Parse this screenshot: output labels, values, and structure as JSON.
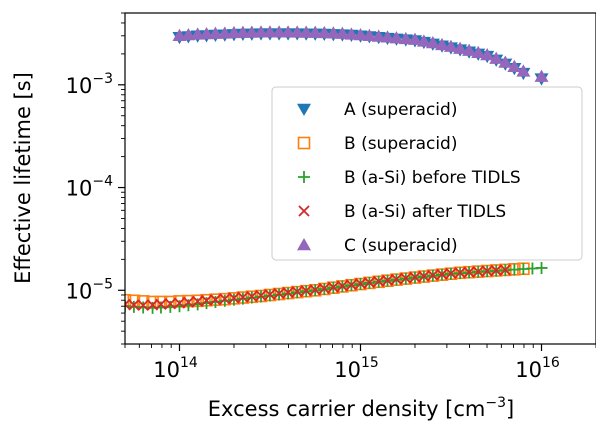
{
  "chart_data": {
    "type": "scatter",
    "xlabel": "Excess carrier density [cm",
    "xlabel_sup": "−3",
    "xlabel_end": "]",
    "ylabel": "Effective lifetime [s]",
    "xscale": "log",
    "yscale": "log",
    "xlim": [
      50000000000000.0,
      2e+16
    ],
    "ylim": [
      3e-06,
      0.005
    ],
    "grid": false,
    "legend_position": "center-right",
    "x_ticks": [
      {
        "base": "10",
        "exp": "14"
      },
      {
        "base": "10",
        "exp": "15"
      },
      {
        "base": "10",
        "exp": "16"
      }
    ],
    "y_ticks": [
      {
        "base": "10",
        "exp": "−5"
      },
      {
        "base": "10",
        "exp": "−4"
      },
      {
        "base": "10",
        "exp": "−3"
      }
    ],
    "series": [
      {
        "name": "A (superacid)",
        "marker": "triangle-down",
        "color": "#1f77b4",
        "x": [
          100000000000000.0,
          112000000000000.0,
          126000000000000.0,
          141000000000000.0,
          158000000000000.0,
          178000000000000.0,
          200000000000000.0,
          224000000000000.0,
          251000000000000.0,
          282000000000000.0,
          316000000000000.0,
          355000000000000.0,
          398000000000000.0,
          447000000000000.0,
          501000000000000.0,
          562000000000000.0,
          631000000000000.0,
          708000000000000.0,
          794000000000000.0,
          891000000000000.0,
          1000000000000000.0,
          1120000000000000.0,
          1260000000000000.0,
          1410000000000000.0,
          1580000000000000.0,
          1780000000000000.0,
          2000000000000000.0,
          2240000000000000.0,
          2510000000000000.0,
          2820000000000000.0,
          3160000000000000.0,
          3550000000000000.0,
          3980000000000000.0,
          4470000000000000.0,
          5010000000000000.0,
          5620000000000000.0,
          6310000000000000.0,
          7080000000000000.0,
          7940000000000000.0,
          1e+16
        ],
        "y": [
          0.0029,
          0.00295,
          0.003,
          0.00302,
          0.00305,
          0.00307,
          0.0031,
          0.00312,
          0.00313,
          0.00315,
          0.00315,
          0.00315,
          0.00315,
          0.00315,
          0.00314,
          0.00313,
          0.00312,
          0.0031,
          0.00308,
          0.00305,
          0.003,
          0.00295,
          0.0029,
          0.00285,
          0.0028,
          0.00275,
          0.0027,
          0.0026,
          0.0025,
          0.0024,
          0.0023,
          0.0022,
          0.0021,
          0.002,
          0.0019,
          0.00175,
          0.0016,
          0.00145,
          0.0013,
          0.00115
        ]
      },
      {
        "name": "B (superacid)",
        "marker": "square-open",
        "color": "#ff7f0e",
        "x": [
          50000000000000.0,
          56000000000000.0,
          63000000000000.0,
          71000000000000.0,
          79000000000000.0,
          89000000000000.0,
          100000000000000.0,
          112000000000000.0,
          126000000000000.0,
          141000000000000.0,
          158000000000000.0,
          178000000000000.0,
          200000000000000.0,
          224000000000000.0,
          251000000000000.0,
          282000000000000.0,
          316000000000000.0,
          355000000000000.0,
          398000000000000.0,
          447000000000000.0,
          501000000000000.0,
          562000000000000.0,
          631000000000000.0,
          708000000000000.0,
          794000000000000.0,
          891000000000000.0,
          1000000000000000.0,
          1120000000000000.0,
          1260000000000000.0,
          1410000000000000.0,
          1580000000000000.0,
          1780000000000000.0,
          2000000000000000.0,
          2240000000000000.0,
          2510000000000000.0,
          2820000000000000.0,
          3160000000000000.0,
          3550000000000000.0,
          3980000000000000.0,
          4470000000000000.0,
          5010000000000000.0,
          5620000000000000.0,
          6310000000000000.0,
          7080000000000000.0,
          7940000000000000.0
        ],
        "y": [
          8e-06,
          7.9e-06,
          7.8e-06,
          7.7e-06,
          7.7e-06,
          7.7e-06,
          7.8e-06,
          7.85e-06,
          7.9e-06,
          8e-06,
          8.1e-06,
          8.2e-06,
          8.35e-06,
          8.5e-06,
          8.65e-06,
          8.8e-06,
          9e-06,
          9.2e-06,
          9.4e-06,
          9.6e-06,
          9.8e-06,
          1e-05,
          1.03e-05,
          1.06e-05,
          1.09e-05,
          1.12e-05,
          1.15e-05,
          1.18e-05,
          1.21e-05,
          1.24e-05,
          1.27e-05,
          1.3e-05,
          1.33e-05,
          1.36e-05,
          1.39e-05,
          1.42e-05,
          1.45e-05,
          1.48e-05,
          1.5e-05,
          1.52e-05,
          1.54e-05,
          1.56e-05,
          1.58e-05,
          1.6e-05,
          1.62e-05
        ]
      },
      {
        "name": "B (a-Si) before TIDLS",
        "marker": "plus",
        "color": "#2ca02c",
        "x": [
          50000000000000.0,
          56000000000000.0,
          63000000000000.0,
          71000000000000.0,
          79000000000000.0,
          89000000000000.0,
          100000000000000.0,
          112000000000000.0,
          126000000000000.0,
          141000000000000.0,
          158000000000000.0,
          178000000000000.0,
          200000000000000.0,
          224000000000000.0,
          251000000000000.0,
          282000000000000.0,
          316000000000000.0,
          355000000000000.0,
          398000000000000.0,
          447000000000000.0,
          501000000000000.0,
          562000000000000.0,
          631000000000000.0,
          708000000000000.0,
          794000000000000.0,
          891000000000000.0,
          1000000000000000.0,
          1120000000000000.0,
          1260000000000000.0,
          1410000000000000.0,
          1580000000000000.0,
          1780000000000000.0,
          2000000000000000.0,
          2240000000000000.0,
          2510000000000000.0,
          2820000000000000.0,
          3160000000000000.0,
          3550000000000000.0,
          3980000000000000.0,
          4470000000000000.0,
          5010000000000000.0,
          5620000000000000.0,
          6310000000000000.0,
          7080000000000000.0,
          7940000000000000.0,
          8910000000000000.0,
          1e+16
        ],
        "y": [
          7e-06,
          6.9e-06,
          6.8e-06,
          6.75e-06,
          6.8e-06,
          6.9e-06,
          7e-06,
          7.15e-06,
          7.3e-06,
          7.5e-06,
          7.7e-06,
          7.9e-06,
          8.1e-06,
          8.3e-06,
          8.5e-06,
          8.7e-06,
          8.9e-06,
          9.1e-06,
          9.3e-06,
          9.55e-06,
          9.8e-06,
          1e-05,
          1.03e-05,
          1.06e-05,
          1.09e-05,
          1.12e-05,
          1.15e-05,
          1.18e-05,
          1.21e-05,
          1.24e-05,
          1.27e-05,
          1.3e-05,
          1.33e-05,
          1.36e-05,
          1.39e-05,
          1.42e-05,
          1.45e-05,
          1.47e-05,
          1.49e-05,
          1.51e-05,
          1.53e-05,
          1.55e-05,
          1.57e-05,
          1.59e-05,
          1.61e-05,
          1.63e-05,
          1.65e-05
        ]
      },
      {
        "name": "B (a-Si) after TIDLS",
        "marker": "x",
        "color": "#d62728",
        "x": [
          50000000000000.0,
          56000000000000.0,
          63000000000000.0,
          71000000000000.0,
          79000000000000.0,
          89000000000000.0,
          100000000000000.0,
          112000000000000.0,
          126000000000000.0,
          141000000000000.0,
          158000000000000.0,
          178000000000000.0,
          200000000000000.0,
          224000000000000.0,
          251000000000000.0,
          282000000000000.0,
          316000000000000.0,
          355000000000000.0,
          398000000000000.0,
          447000000000000.0,
          501000000000000.0,
          562000000000000.0,
          631000000000000.0,
          708000000000000.0,
          794000000000000.0,
          891000000000000.0,
          1000000000000000.0,
          1120000000000000.0,
          1260000000000000.0,
          1410000000000000.0,
          1580000000000000.0,
          1780000000000000.0,
          2000000000000000.0,
          2240000000000000.0,
          2510000000000000.0,
          2820000000000000.0,
          3160000000000000.0,
          3550000000000000.0,
          3980000000000000.0,
          4470000000000000.0,
          5010000000000000.0,
          5620000000000000.0,
          6310000000000000.0
        ],
        "y": [
          7.3e-06,
          7.2e-06,
          7.15e-06,
          7.2e-06,
          7.3e-06,
          7.4e-06,
          7.5e-06,
          7.65e-06,
          7.8e-06,
          7.95e-06,
          8.1e-06,
          8.25e-06,
          8.4e-06,
          8.55e-06,
          8.7e-06,
          8.9e-06,
          9.1e-06,
          9.3e-06,
          9.5e-06,
          9.7e-06,
          9.9e-06,
          1.01e-05,
          1.04e-05,
          1.07e-05,
          1.1e-05,
          1.13e-05,
          1.16e-05,
          1.19e-05,
          1.22e-05,
          1.25e-05,
          1.28e-05,
          1.31e-05,
          1.34e-05,
          1.37e-05,
          1.4e-05,
          1.43e-05,
          1.46e-05,
          1.48e-05,
          1.5e-05,
          1.52e-05,
          1.54e-05,
          1.56e-05,
          1.58e-05
        ]
      },
      {
        "name": "C (superacid)",
        "marker": "triangle-up",
        "color": "#9467bd",
        "x": [
          100000000000000.0,
          112000000000000.0,
          126000000000000.0,
          141000000000000.0,
          158000000000000.0,
          178000000000000.0,
          200000000000000.0,
          224000000000000.0,
          251000000000000.0,
          282000000000000.0,
          316000000000000.0,
          355000000000000.0,
          398000000000000.0,
          447000000000000.0,
          501000000000000.0,
          562000000000000.0,
          631000000000000.0,
          708000000000000.0,
          794000000000000.0,
          891000000000000.0,
          1000000000000000.0,
          1120000000000000.0,
          1260000000000000.0,
          1410000000000000.0,
          1580000000000000.0,
          1780000000000000.0,
          2000000000000000.0,
          2240000000000000.0,
          2510000000000000.0,
          2820000000000000.0,
          3160000000000000.0,
          3550000000000000.0,
          3980000000000000.0,
          4470000000000000.0,
          5010000000000000.0,
          5620000000000000.0,
          6310000000000000.0,
          7080000000000000.0,
          7940000000000000.0,
          1e+16
        ],
        "y": [
          0.003,
          0.00305,
          0.0031,
          0.00312,
          0.00315,
          0.00317,
          0.0032,
          0.00322,
          0.00323,
          0.00325,
          0.00325,
          0.00325,
          0.00325,
          0.00324,
          0.00323,
          0.00322,
          0.0032,
          0.00318,
          0.00315,
          0.0031,
          0.00305,
          0.003,
          0.00295,
          0.0029,
          0.00285,
          0.0028,
          0.00275,
          0.00265,
          0.00255,
          0.00245,
          0.00235,
          0.00225,
          0.00215,
          0.00205,
          0.00195,
          0.0018,
          0.00165,
          0.0015,
          0.00135,
          0.0012
        ]
      }
    ]
  }
}
